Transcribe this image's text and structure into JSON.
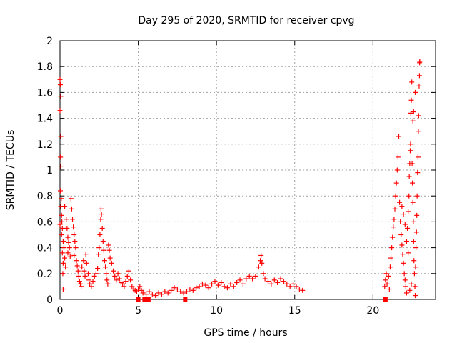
{
  "chart_data": {
    "type": "scatter",
    "title": "Day 295 of 2020, SRMTID for receiver cpvg",
    "xlabel": "GPS time / hours",
    "ylabel": "SRMTID / TECUs",
    "xlim": [
      0,
      24
    ],
    "ylim": [
      0,
      2
    ],
    "xticks": [
      "0",
      "5",
      "10",
      "15",
      "20"
    ],
    "xtick_values": [
      0,
      5,
      10,
      15,
      20
    ],
    "yticks": [
      "0",
      "0.2",
      "0.4",
      "0.6",
      "0.8",
      "1",
      "1.2",
      "1.4",
      "1.6",
      "1.8",
      "2"
    ],
    "ytick_values": [
      0,
      0.2,
      0.4,
      0.6,
      0.8,
      1.0,
      1.2,
      1.4,
      1.6,
      1.8,
      2.0
    ],
    "grid": true,
    "marker": "plus",
    "color": "#ff0000",
    "series": [
      {
        "name": "SRMTID",
        "points": [
          [
            0.0,
            1.7
          ],
          [
            0.02,
            1.66
          ],
          [
            0.05,
            1.57
          ],
          [
            0.0,
            1.46
          ],
          [
            0.05,
            1.26
          ],
          [
            0.03,
            1.1
          ],
          [
            0.05,
            1.03
          ],
          [
            0.02,
            0.84
          ],
          [
            0.08,
            0.78
          ],
          [
            0.05,
            0.72
          ],
          [
            0.1,
            0.65
          ],
          [
            0.12,
            0.6
          ],
          [
            0.15,
            0.55
          ],
          [
            0.0,
            0.58
          ],
          [
            0.1,
            0.5
          ],
          [
            0.2,
            0.45
          ],
          [
            0.25,
            0.4
          ],
          [
            0.15,
            0.36
          ],
          [
            0.3,
            0.32
          ],
          [
            0.2,
            0.28
          ],
          [
            0.35,
            0.25
          ],
          [
            0.18,
            0.2
          ],
          [
            0.4,
            0.62
          ],
          [
            0.45,
            0.55
          ],
          [
            0.5,
            0.48
          ],
          [
            0.55,
            0.44
          ],
          [
            0.6,
            0.4
          ],
          [
            0.5,
            0.36
          ],
          [
            0.65,
            0.33
          ],
          [
            0.3,
            0.72
          ],
          [
            0.2,
            0.08
          ],
          [
            0.7,
            0.78
          ],
          [
            0.75,
            0.7
          ],
          [
            0.8,
            0.62
          ],
          [
            0.85,
            0.56
          ],
          [
            0.9,
            0.5
          ],
          [
            0.95,
            0.45
          ],
          [
            1.0,
            0.4
          ],
          [
            0.9,
            0.34
          ],
          [
            1.05,
            0.3
          ],
          [
            1.1,
            0.26
          ],
          [
            1.15,
            0.22
          ],
          [
            1.2,
            0.18
          ],
          [
            1.25,
            0.14
          ],
          [
            1.3,
            0.12
          ],
          [
            1.35,
            0.1
          ],
          [
            1.4,
            0.25
          ],
          [
            1.5,
            0.3
          ],
          [
            1.55,
            0.22
          ],
          [
            1.6,
            0.18
          ],
          [
            1.65,
            0.35
          ],
          [
            1.7,
            0.28
          ],
          [
            1.8,
            0.2
          ],
          [
            1.85,
            0.15
          ],
          [
            1.9,
            0.12
          ],
          [
            2.0,
            0.1
          ],
          [
            2.1,
            0.14
          ],
          [
            2.2,
            0.18
          ],
          [
            2.3,
            0.2
          ],
          [
            2.4,
            0.24
          ],
          [
            2.45,
            0.35
          ],
          [
            2.5,
            0.4
          ],
          [
            2.55,
            0.5
          ],
          [
            2.6,
            0.62
          ],
          [
            2.62,
            0.7
          ],
          [
            2.65,
            0.66
          ],
          [
            2.7,
            0.55
          ],
          [
            2.75,
            0.45
          ],
          [
            2.8,
            0.38
          ],
          [
            2.85,
            0.3
          ],
          [
            2.9,
            0.25
          ],
          [
            2.95,
            0.2
          ],
          [
            3.0,
            0.15
          ],
          [
            3.05,
            0.12
          ],
          [
            3.1,
            0.42
          ],
          [
            3.15,
            0.38
          ],
          [
            3.2,
            0.32
          ],
          [
            3.3,
            0.28
          ],
          [
            3.4,
            0.22
          ],
          [
            3.5,
            0.18
          ],
          [
            3.6,
            0.15
          ],
          [
            3.7,
            0.2
          ],
          [
            3.8,
            0.16
          ],
          [
            3.9,
            0.13
          ],
          [
            4.0,
            0.12
          ],
          [
            4.1,
            0.1
          ],
          [
            4.2,
            0.14
          ],
          [
            4.3,
            0.18
          ],
          [
            4.4,
            0.22
          ],
          [
            4.5,
            0.15
          ],
          [
            4.6,
            0.1
          ],
          [
            4.7,
            0.08
          ],
          [
            4.8,
            0.07
          ],
          [
            4.9,
            0.06
          ],
          [
            5.0,
            0.08
          ],
          [
            5.1,
            0.1
          ],
          [
            5.2,
            0.07
          ],
          [
            5.3,
            0.05
          ],
          [
            5.5,
            0.04
          ],
          [
            5.7,
            0.06
          ],
          [
            5.9,
            0.04
          ],
          [
            6.1,
            0.03
          ],
          [
            6.3,
            0.05
          ],
          [
            6.5,
            0.04
          ],
          [
            6.7,
            0.06
          ],
          [
            6.9,
            0.05
          ],
          [
            7.1,
            0.07
          ],
          [
            7.3,
            0.09
          ],
          [
            7.5,
            0.08
          ],
          [
            7.7,
            0.06
          ],
          [
            7.9,
            0.05
          ],
          [
            8.1,
            0.06
          ],
          [
            8.3,
            0.08
          ],
          [
            8.5,
            0.07
          ],
          [
            8.7,
            0.09
          ],
          [
            8.9,
            0.1
          ],
          [
            9.1,
            0.12
          ],
          [
            9.3,
            0.11
          ],
          [
            9.5,
            0.09
          ],
          [
            9.7,
            0.12
          ],
          [
            9.9,
            0.14
          ],
          [
            10.1,
            0.11
          ],
          [
            10.3,
            0.13
          ],
          [
            10.5,
            0.1
          ],
          [
            10.7,
            0.09
          ],
          [
            10.9,
            0.12
          ],
          [
            11.1,
            0.1
          ],
          [
            11.3,
            0.13
          ],
          [
            11.5,
            0.15
          ],
          [
            11.7,
            0.12
          ],
          [
            11.9,
            0.16
          ],
          [
            12.1,
            0.18
          ],
          [
            12.3,
            0.16
          ],
          [
            12.5,
            0.18
          ],
          [
            12.7,
            0.25
          ],
          [
            12.8,
            0.3
          ],
          [
            12.85,
            0.34
          ],
          [
            12.9,
            0.28
          ],
          [
            13.0,
            0.2
          ],
          [
            13.1,
            0.16
          ],
          [
            13.3,
            0.14
          ],
          [
            13.5,
            0.12
          ],
          [
            13.7,
            0.15
          ],
          [
            13.9,
            0.13
          ],
          [
            14.1,
            0.16
          ],
          [
            14.3,
            0.14
          ],
          [
            14.5,
            0.12
          ],
          [
            14.7,
            0.1
          ],
          [
            14.9,
            0.12
          ],
          [
            15.1,
            0.1
          ],
          [
            15.3,
            0.08
          ],
          [
            15.5,
            0.07
          ],
          [
            20.75,
            0.1
          ],
          [
            20.8,
            0.15
          ],
          [
            20.85,
            0.2
          ],
          [
            20.9,
            0.12
          ],
          [
            21.0,
            0.18
          ],
          [
            21.05,
            0.08
          ],
          [
            21.1,
            0.25
          ],
          [
            21.15,
            0.32
          ],
          [
            21.2,
            0.4
          ],
          [
            21.25,
            0.48
          ],
          [
            21.3,
            0.56
          ],
          [
            21.35,
            0.62
          ],
          [
            21.4,
            0.7
          ],
          [
            21.45,
            0.8
          ],
          [
            21.5,
            0.9
          ],
          [
            21.55,
            1.0
          ],
          [
            21.6,
            1.1
          ],
          [
            21.65,
            1.26
          ],
          [
            21.7,
            0.75
          ],
          [
            21.75,
            0.6
          ],
          [
            21.8,
            0.5
          ],
          [
            21.85,
            0.42
          ],
          [
            21.9,
            0.35
          ],
          [
            21.95,
            0.28
          ],
          [
            22.0,
            0.2
          ],
          [
            22.05,
            0.15
          ],
          [
            22.1,
            0.1
          ],
          [
            22.15,
            0.05
          ],
          [
            22.2,
            0.55
          ],
          [
            22.25,
            0.68
          ],
          [
            22.3,
            0.8
          ],
          [
            22.32,
            0.95
          ],
          [
            22.35,
            1.05
          ],
          [
            22.38,
            1.15
          ],
          [
            22.4,
            1.2
          ],
          [
            22.42,
            1.44
          ],
          [
            22.45,
            1.54
          ],
          [
            22.48,
            1.68
          ],
          [
            22.5,
            1.05
          ],
          [
            22.52,
            0.9
          ],
          [
            22.55,
            0.75
          ],
          [
            22.58,
            0.6
          ],
          [
            22.6,
            0.45
          ],
          [
            22.62,
            0.3
          ],
          [
            22.65,
            0.2
          ],
          [
            22.68,
            0.1
          ],
          [
            22.7,
            0.03
          ],
          [
            22.72,
            0.25
          ],
          [
            22.75,
            0.4
          ],
          [
            22.78,
            0.52
          ],
          [
            22.8,
            0.65
          ],
          [
            22.82,
            0.8
          ],
          [
            22.85,
            0.98
          ],
          [
            22.88,
            1.1
          ],
          [
            22.9,
            1.3
          ],
          [
            22.92,
            1.42
          ],
          [
            22.95,
            1.65
          ],
          [
            22.97,
            1.73
          ],
          [
            22.98,
            1.83
          ],
          [
            22.99,
            1.84
          ],
          [
            22.7,
            1.6
          ],
          [
            22.6,
            1.45
          ],
          [
            22.55,
            1.38
          ],
          [
            22.45,
            0.12
          ],
          [
            22.35,
            0.07
          ],
          [
            22.25,
            0.36
          ],
          [
            22.15,
            0.45
          ],
          [
            22.05,
            0.58
          ],
          [
            21.95,
            0.66
          ],
          [
            21.85,
            0.72
          ]
        ]
      }
    ],
    "zero_markers": [
      [
        5.0,
        0.0
      ],
      [
        5.4,
        0.0
      ],
      [
        5.65,
        0.0
      ],
      [
        8.0,
        0.0
      ],
      [
        20.8,
        0.0
      ]
    ]
  }
}
